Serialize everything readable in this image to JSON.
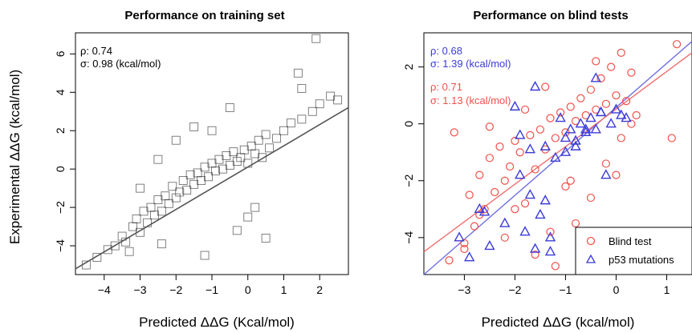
{
  "colors": {
    "black": "#000000",
    "red": "#f0504a",
    "blue": "#3b3bd8",
    "gray": "#555555",
    "blue_line": "#7070e0",
    "red_line": "#f07070"
  },
  "chart_data": [
    {
      "type": "scatter",
      "title": "Performance on training set",
      "xlabel": "Predicted ΔΔG (Kcal/mol)",
      "ylabel": "Experimental ΔΔG (kcal/mol)",
      "xlim": [
        -4.8,
        2.8
      ],
      "ylim": [
        -5.5,
        7.1
      ],
      "xticks": [
        -4,
        -3,
        -2,
        -1,
        0,
        1,
        2
      ],
      "yticks": [
        -4,
        -2,
        0,
        2,
        4,
        6
      ],
      "annotations": [
        "ρ: 0.74",
        "σ: 0.98 (kcal/mol)"
      ],
      "series": [
        {
          "marker": "square",
          "color": "#000000",
          "x": [
            -4.5,
            -4.2,
            -3.9,
            -3.7,
            -3.5,
            -3.4,
            -3.2,
            -3.1,
            -3.0,
            -2.9,
            -2.8,
            -2.7,
            -2.6,
            -2.5,
            -2.4,
            -2.3,
            -2.2,
            -2.1,
            -2.0,
            -1.9,
            -1.8,
            -1.7,
            -1.6,
            -1.5,
            -1.4,
            -1.3,
            -1.2,
            -1.1,
            -1.0,
            -0.9,
            -0.8,
            -0.7,
            -0.6,
            -0.5,
            -0.4,
            -0.3,
            -0.2,
            -0.1,
            0.0,
            0.1,
            0.2,
            0.3,
            0.4,
            0.5,
            0.6,
            0.8,
            1.0,
            1.2,
            1.5,
            1.8,
            2.0,
            2.3,
            2.5,
            -2.0,
            -1.5,
            -1.0,
            -0.5,
            0.0,
            0.5,
            -3.0,
            -2.5,
            1.5,
            1.9,
            1.4,
            0.2,
            -0.3,
            -1.2,
            -2.4,
            -3.3
          ],
          "y": [
            -5.0,
            -4.6,
            -4.2,
            -4.0,
            -3.5,
            -3.8,
            -3.0,
            -2.6,
            -3.3,
            -2.2,
            -2.8,
            -2.0,
            -2.4,
            -1.6,
            -2.2,
            -1.4,
            -1.8,
            -0.9,
            -1.5,
            -1.2,
            -0.6,
            -1.1,
            -0.3,
            -0.8,
            -0.2,
            -0.6,
            0.1,
            -0.4,
            0.3,
            -0.1,
            0.5,
            0.0,
            0.7,
            0.2,
            0.9,
            0.4,
            0.6,
            1.0,
            0.3,
            1.2,
            0.8,
            1.5,
            0.6,
            1.8,
            1.1,
            1.6,
            2.0,
            2.4,
            2.6,
            3.0,
            3.4,
            3.8,
            3.6,
            1.5,
            2.2,
            2.0,
            3.2,
            -2.5,
            -3.6,
            -1.0,
            0.5,
            4.2,
            6.8,
            5.0,
            -2.0,
            -3.2,
            -4.5,
            -3.9,
            -4.3
          ]
        }
      ],
      "fit_line": {
        "x": [
          -4.8,
          2.8
        ],
        "y": [
          -5.2,
          3.2
        ]
      }
    },
    {
      "type": "scatter",
      "title": "Performance on blind tests",
      "xlabel": "Predicted ΔΔG (kcal/mol)",
      "ylabel": "",
      "xlim": [
        -3.8,
        1.5
      ],
      "ylim": [
        -5.3,
        3.2
      ],
      "xticks": [
        -3,
        -2,
        -1,
        0,
        1
      ],
      "yticks": [
        -4,
        -2,
        0,
        2
      ],
      "annotations_blue": [
        "ρ: 0.68",
        "σ: 1.39 (kcal/mol)"
      ],
      "annotations_red": [
        "ρ: 0.71",
        "σ: 1.13 (kcal/mol)"
      ],
      "series": [
        {
          "name": "Blind test",
          "marker": "circle",
          "color": "#f0504a",
          "x": [
            -3.3,
            -3.2,
            -3.0,
            -2.9,
            -2.8,
            -2.7,
            -2.6,
            -2.5,
            -2.4,
            -2.3,
            -2.2,
            -2.1,
            -2.0,
            -1.9,
            -1.8,
            -1.7,
            -1.6,
            -1.5,
            -1.4,
            -1.3,
            -1.2,
            -1.1,
            -1.0,
            -0.9,
            -0.8,
            -0.7,
            -0.6,
            -0.5,
            -0.4,
            -0.3,
            -0.2,
            -0.1,
            0.0,
            0.1,
            0.2,
            0.3,
            0.4,
            -0.2,
            0.1,
            1.1,
            1.2,
            -0.4,
            -1.4,
            -2.2,
            -2.7,
            -1.6,
            -0.8,
            -1.0,
            -0.5,
            0.3,
            -2.0,
            -3.0,
            -1.2,
            -0.6,
            0.0,
            -2.5,
            -1.8,
            -1.3,
            -0.9
          ],
          "y": [
            -4.8,
            -0.3,
            -4.2,
            -2.5,
            -3.6,
            -1.8,
            -3.0,
            -1.2,
            -2.4,
            -0.8,
            -2.0,
            -1.5,
            -0.6,
            -1.0,
            -2.8,
            -0.4,
            -1.6,
            -0.2,
            -0.9,
            0.2,
            -0.5,
            0.4,
            -0.3,
            0.6,
            0.1,
            0.9,
            0.3,
            1.2,
            0.5,
            1.6,
            0.7,
            2.0,
            1.0,
            2.5,
            0.8,
            1.8,
            0.3,
            -1.4,
            -0.5,
            -0.5,
            2.8,
            2.2,
            1.3,
            -4.0,
            -3.2,
            -4.6,
            -3.5,
            -2.2,
            -2.6,
            0.0,
            -3.0,
            -4.4,
            -5.0,
            -4.2,
            -1.8,
            -0.1,
            0.5,
            -3.8,
            -2.0
          ]
        },
        {
          "name": "p53 mutations",
          "marker": "triangle",
          "color": "#3b3bd8",
          "x": [
            -2.9,
            -3.1,
            -2.7,
            -2.5,
            -2.2,
            -2.0,
            -1.9,
            -1.8,
            -1.7,
            -1.6,
            -1.5,
            -1.4,
            -1.3,
            -1.2,
            -1.1,
            -1.0,
            -0.9,
            -0.8,
            -0.7,
            -0.6,
            -0.5,
            -0.4,
            -0.3,
            -0.2,
            -0.1,
            0.0,
            0.1,
            0.2,
            -1.6,
            -1.9,
            -1.3,
            -0.4,
            -2.6,
            -1.4,
            -0.8,
            -1.7,
            -1.0,
            -0.3,
            -0.6
          ],
          "y": [
            -4.7,
            -4.0,
            -3.0,
            -4.3,
            -3.5,
            0.6,
            -1.8,
            -3.8,
            -2.5,
            1.3,
            -3.2,
            -2.7,
            -4.0,
            -1.2,
            0.2,
            -0.5,
            -0.2,
            -0.6,
            0.0,
            -0.3,
            0.2,
            1.6,
            0.4,
            -1.8,
            0.0,
            0.5,
            0.3,
            0.2,
            -4.4,
            -0.4,
            -4.5,
            -0.2,
            -3.1,
            -0.8,
            -0.8,
            -0.9,
            -1.0,
            0.4,
            -0.2
          ]
        }
      ],
      "fit_lines": [
        {
          "name": "blue",
          "x": [
            -3.8,
            1.5
          ],
          "y": [
            -5.3,
            2.9
          ]
        },
        {
          "name": "red",
          "x": [
            -3.8,
            1.5
          ],
          "y": [
            -4.5,
            2.5
          ]
        }
      ],
      "legend": {
        "placement": "bottom-right",
        "entries": [
          "Blind test",
          "p53 mutations"
        ]
      }
    }
  ]
}
